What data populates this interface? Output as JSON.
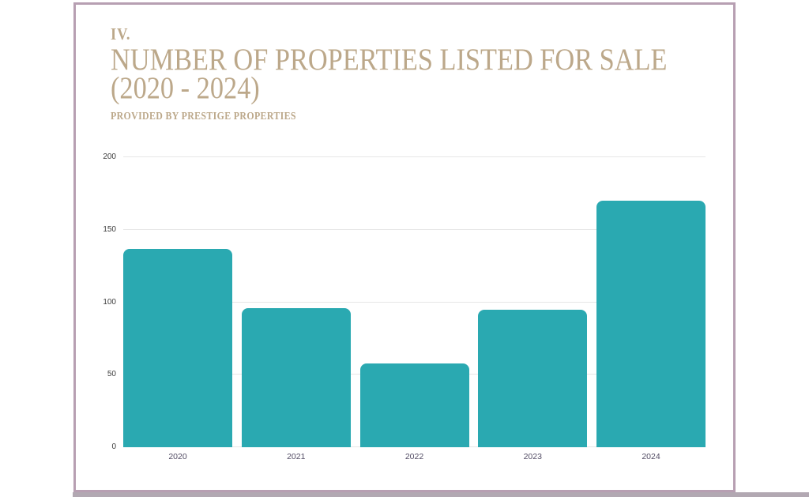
{
  "page": {
    "section_number": "IV.",
    "title_line1": "NUMBER OF PROPERTIES LISTED FOR SALE",
    "title_line2": "(2020 - 2024)",
    "subtitle": "PROVIDED BY PRESTIGE PROPERTIES"
  },
  "colors": {
    "bar": "#2AA9B1",
    "title_text": "#BCA88A",
    "card_border": "#B79FB2",
    "bottom_strip": "#B2A8B2",
    "gridline": "#E7E7E7",
    "y_tick_label": "#3D3D3D",
    "x_tick_label": "#514B63"
  },
  "chart_data": {
    "type": "bar",
    "title": "Number of Properties Listed for Sale (2020 - 2024)",
    "subtitle": "Provided by Prestige Properties",
    "categories": [
      "2020",
      "2021",
      "2022",
      "2023",
      "2024"
    ],
    "values": [
      137,
      96,
      58,
      95,
      170
    ],
    "xlabel": "",
    "ylabel": "",
    "ylim": [
      0,
      200
    ],
    "yticks": [
      0,
      50,
      100,
      150,
      200
    ],
    "grid": true,
    "legend": "none",
    "bar_color": "#2AA9B1"
  }
}
